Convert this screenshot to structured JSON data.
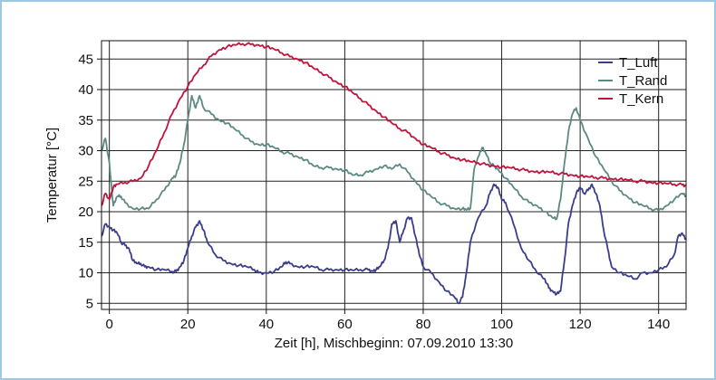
{
  "chart_data": {
    "type": "line",
    "xlabel": "Zeit [h], Mischbeginn: 07.09.2010 13:30",
    "ylabel": "Temperatur [°C]",
    "xlim": [
      -2,
      147
    ],
    "ylim": [
      4,
      48
    ],
    "x_ticks": [
      0,
      20,
      40,
      60,
      80,
      100,
      120,
      140
    ],
    "y_ticks": [
      5,
      10,
      15,
      20,
      25,
      30,
      35,
      40,
      45
    ],
    "grid": true,
    "legend": "top-right",
    "series": [
      {
        "name": "T_Luft",
        "color": "#3c3c8c",
        "points": [
          [
            -2,
            16
          ],
          [
            -1,
            18
          ],
          [
            0,
            17.5
          ],
          [
            1,
            17
          ],
          [
            2,
            16.5
          ],
          [
            3,
            15
          ],
          [
            4,
            14.5
          ],
          [
            5,
            14
          ],
          [
            6,
            12
          ],
          [
            7,
            11.5
          ],
          [
            8,
            11.5
          ],
          [
            9,
            11
          ],
          [
            10,
            11
          ],
          [
            12,
            10.5
          ],
          [
            14,
            10.5
          ],
          [
            16,
            10.2
          ],
          [
            17,
            10.2
          ],
          [
            18,
            11
          ],
          [
            19,
            12
          ],
          [
            20,
            14
          ],
          [
            21,
            16
          ],
          [
            22,
            17.5
          ],
          [
            23,
            18.5
          ],
          [
            24,
            17
          ],
          [
            25,
            15
          ],
          [
            27,
            13
          ],
          [
            29,
            12
          ],
          [
            31,
            11.5
          ],
          [
            33,
            11.2
          ],
          [
            35,
            11
          ],
          [
            37,
            10.5
          ],
          [
            38,
            10
          ],
          [
            40,
            10
          ],
          [
            42,
            10.2
          ],
          [
            44,
            11
          ],
          [
            45,
            11.8
          ],
          [
            46,
            11.5
          ],
          [
            48,
            11
          ],
          [
            50,
            11
          ],
          [
            52,
            11
          ],
          [
            54,
            10.5
          ],
          [
            56,
            10.5
          ],
          [
            58,
            10.5
          ],
          [
            60,
            10.5
          ],
          [
            62,
            10.4
          ],
          [
            64,
            10.5
          ],
          [
            66,
            10.5
          ],
          [
            67,
            10.3
          ],
          [
            68,
            10.5
          ],
          [
            69,
            11
          ],
          [
            70,
            12
          ],
          [
            71,
            14
          ],
          [
            72,
            18
          ],
          [
            73,
            18.5
          ],
          [
            74,
            15
          ],
          [
            75,
            17
          ],
          [
            76,
            19
          ],
          [
            77,
            19
          ],
          [
            78,
            16
          ],
          [
            79,
            13
          ],
          [
            80,
            11
          ],
          [
            82,
            10
          ],
          [
            84,
            8.5
          ],
          [
            86,
            7
          ],
          [
            88,
            6
          ],
          [
            89,
            5
          ],
          [
            90,
            6
          ],
          [
            91,
            10
          ],
          [
            92,
            15
          ],
          [
            94,
            19
          ],
          [
            96,
            21
          ],
          [
            97,
            23
          ],
          [
            98,
            24.5
          ],
          [
            99,
            24
          ],
          [
            100,
            22
          ],
          [
            101,
            21.5
          ],
          [
            103,
            18
          ],
          [
            105,
            14
          ],
          [
            107,
            12
          ],
          [
            109,
            10
          ],
          [
            111,
            9
          ],
          [
            112,
            7.5
          ],
          [
            113,
            7
          ],
          [
            114,
            6.5
          ],
          [
            115,
            7
          ],
          [
            116,
            12
          ],
          [
            117,
            18
          ],
          [
            118,
            21
          ],
          [
            119,
            23
          ],
          [
            120,
            24
          ],
          [
            121,
            23
          ],
          [
            122,
            23.5
          ],
          [
            123,
            24.5
          ],
          [
            124,
            23
          ],
          [
            125,
            21
          ],
          [
            126,
            17
          ],
          [
            127,
            14
          ],
          [
            128,
            11
          ],
          [
            130,
            10
          ],
          [
            132,
            9.5
          ],
          [
            134,
            9
          ],
          [
            136,
            10
          ],
          [
            138,
            10
          ],
          [
            140,
            10.5
          ],
          [
            142,
            11
          ],
          [
            144,
            13
          ],
          [
            145,
            16
          ],
          [
            146,
            16.5
          ],
          [
            147,
            15.5
          ]
        ]
      },
      {
        "name": "T_Rand",
        "color": "#5b8a82",
        "points": [
          [
            -2,
            30
          ],
          [
            -1,
            32
          ],
          [
            0,
            28
          ],
          [
            1,
            21
          ],
          [
            2,
            22.5
          ],
          [
            3,
            22.5
          ],
          [
            4,
            21.5
          ],
          [
            6,
            20.5
          ],
          [
            8,
            20.5
          ],
          [
            10,
            20.5
          ],
          [
            12,
            22
          ],
          [
            14,
            23.5
          ],
          [
            16,
            25.5
          ],
          [
            17,
            26
          ],
          [
            18,
            28
          ],
          [
            19,
            31
          ],
          [
            20,
            35
          ],
          [
            21,
            39
          ],
          [
            22,
            37
          ],
          [
            23,
            39
          ],
          [
            24,
            37
          ],
          [
            26,
            36
          ],
          [
            28,
            35
          ],
          [
            30,
            34.5
          ],
          [
            32,
            33.5
          ],
          [
            34,
            32.5
          ],
          [
            36,
            31.5
          ],
          [
            38,
            31
          ],
          [
            40,
            31
          ],
          [
            42,
            30.5
          ],
          [
            44,
            29.8
          ],
          [
            46,
            29.5
          ],
          [
            48,
            29
          ],
          [
            50,
            28.5
          ],
          [
            52,
            27.5
          ],
          [
            54,
            27.2
          ],
          [
            56,
            27.2
          ],
          [
            58,
            27
          ],
          [
            60,
            26.8
          ],
          [
            62,
            26
          ],
          [
            64,
            26
          ],
          [
            66,
            26.5
          ],
          [
            68,
            27
          ],
          [
            70,
            27.5
          ],
          [
            72,
            27
          ],
          [
            74,
            27.8
          ],
          [
            76,
            26.5
          ],
          [
            78,
            25
          ],
          [
            80,
            23.5
          ],
          [
            82,
            22.5
          ],
          [
            84,
            21.5
          ],
          [
            86,
            21
          ],
          [
            88,
            20.5
          ],
          [
            90,
            20.5
          ],
          [
            91,
            20.3
          ],
          [
            92,
            20.5
          ],
          [
            93,
            27
          ],
          [
            94,
            29
          ],
          [
            95,
            30.5
          ],
          [
            96,
            29.5
          ],
          [
            97,
            28
          ],
          [
            98,
            27.5
          ],
          [
            99,
            27
          ],
          [
            101,
            25.5
          ],
          [
            103,
            24
          ],
          [
            105,
            22.5
          ],
          [
            107,
            21.5
          ],
          [
            109,
            21
          ],
          [
            111,
            20
          ],
          [
            113,
            19
          ],
          [
            114,
            18.8
          ],
          [
            115,
            22
          ],
          [
            116,
            28
          ],
          [
            117,
            33
          ],
          [
            118,
            36
          ],
          [
            119,
            37
          ],
          [
            120,
            35
          ],
          [
            122,
            32
          ],
          [
            124,
            29
          ],
          [
            126,
            27
          ],
          [
            128,
            25
          ],
          [
            130,
            23.5
          ],
          [
            132,
            22.5
          ],
          [
            134,
            21.5
          ],
          [
            136,
            21
          ],
          [
            138,
            20.5
          ],
          [
            140,
            20.2
          ],
          [
            142,
            21
          ],
          [
            144,
            22
          ],
          [
            146,
            23
          ],
          [
            147,
            22.5
          ]
        ]
      },
      {
        "name": "T_Kern",
        "color": "#c0143c",
        "points": [
          [
            -2,
            21
          ],
          [
            -1,
            23
          ],
          [
            0,
            22
          ],
          [
            1,
            24
          ],
          [
            2,
            24.5
          ],
          [
            4,
            24.8
          ],
          [
            6,
            25
          ],
          [
            8,
            25.5
          ],
          [
            10,
            27.5
          ],
          [
            12,
            30
          ],
          [
            14,
            33
          ],
          [
            16,
            36
          ],
          [
            18,
            38.5
          ],
          [
            20,
            40.5
          ],
          [
            22,
            42.5
          ],
          [
            24,
            44
          ],
          [
            26,
            45.5
          ],
          [
            28,
            46.5
          ],
          [
            30,
            47
          ],
          [
            32,
            47.3
          ],
          [
            34,
            47.5
          ],
          [
            36,
            47.4
          ],
          [
            38,
            47.3
          ],
          [
            40,
            47
          ],
          [
            42,
            46.6
          ],
          [
            44,
            46
          ],
          [
            46,
            45.4
          ],
          [
            48,
            45
          ],
          [
            50,
            44.4
          ],
          [
            52,
            43.5
          ],
          [
            54,
            42.8
          ],
          [
            56,
            42
          ],
          [
            58,
            41.2
          ],
          [
            60,
            40.5
          ],
          [
            62,
            39.5
          ],
          [
            64,
            38.5
          ],
          [
            66,
            37.5
          ],
          [
            68,
            36.5
          ],
          [
            70,
            35.5
          ],
          [
            72,
            34.5
          ],
          [
            74,
            33.6
          ],
          [
            76,
            33
          ],
          [
            78,
            32
          ],
          [
            80,
            31
          ],
          [
            82,
            30.5
          ],
          [
            84,
            29.8
          ],
          [
            86,
            29.3
          ],
          [
            88,
            28.8
          ],
          [
            90,
            28.5
          ],
          [
            92,
            28.2
          ],
          [
            94,
            28
          ],
          [
            96,
            27.7
          ],
          [
            98,
            27.5
          ],
          [
            100,
            27.3
          ],
          [
            102,
            27.2
          ],
          [
            104,
            27
          ],
          [
            106,
            26.8
          ],
          [
            108,
            26.6
          ],
          [
            110,
            26.5
          ],
          [
            112,
            26.5
          ],
          [
            114,
            26.3
          ],
          [
            116,
            26.2
          ],
          [
            118,
            26
          ],
          [
            120,
            25.8
          ],
          [
            122,
            25.7
          ],
          [
            124,
            25.6
          ],
          [
            126,
            25.5
          ],
          [
            128,
            25.4
          ],
          [
            130,
            25.3
          ],
          [
            132,
            25.2
          ],
          [
            134,
            25
          ],
          [
            136,
            25
          ],
          [
            138,
            24.8
          ],
          [
            140,
            24.7
          ],
          [
            142,
            24.6
          ],
          [
            144,
            24.5
          ],
          [
            146,
            24.4
          ],
          [
            147,
            24.3
          ]
        ]
      }
    ]
  }
}
